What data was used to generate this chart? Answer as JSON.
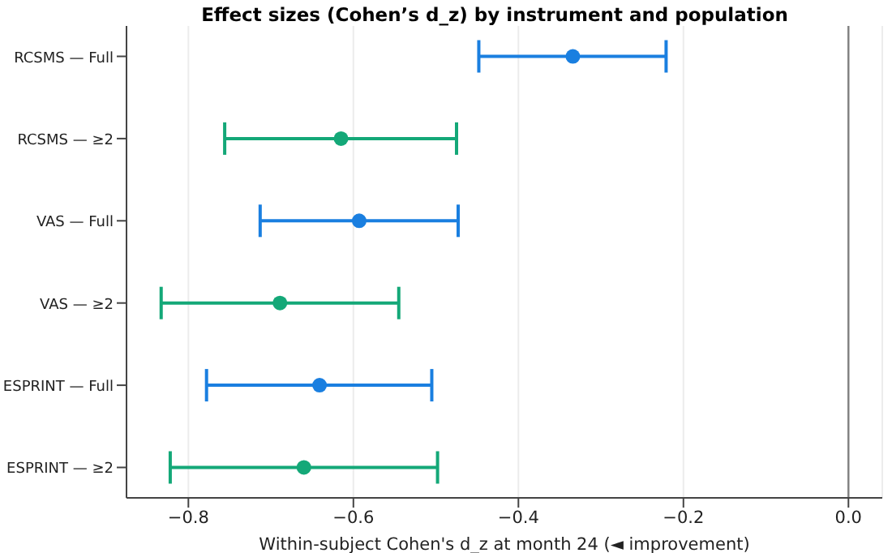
{
  "chart_data": {
    "type": "scatter",
    "title": "Effect sizes (Cohen’s d_z) by instrument and population",
    "xlabel": "Within-subject Cohen's d_z at month 24 (◄ improvement)",
    "categories": [
      "RCSMS — Full",
      "RCSMS — ≥2",
      "VAS — Full",
      "VAS — ≥2",
      "ESPRINT — Full",
      "ESPRINT — ≥2"
    ],
    "orientation": "horizontal",
    "values": [
      -0.334,
      -0.615,
      -0.593,
      -0.689,
      -0.641,
      -0.66
    ],
    "errors": [
      [
        -0.448,
        -0.221
      ],
      [
        -0.756,
        -0.475
      ],
      [
        -0.713,
        -0.473
      ],
      [
        -0.833,
        -0.545
      ],
      [
        -0.778,
        -0.505
      ],
      [
        -0.822,
        -0.498
      ]
    ],
    "colors": [
      "#1a7fe0",
      "#14a878",
      "#1a7fe0",
      "#14a878",
      "#1a7fe0",
      "#14a878"
    ],
    "xlim": [
      -0.875,
      0.041
    ],
    "xticks": [
      {
        "value": -0.8,
        "label": "−0.8"
      },
      {
        "value": -0.6,
        "label": "−0.6"
      },
      {
        "value": -0.4,
        "label": "−0.4"
      },
      {
        "value": -0.2,
        "label": "−0.2"
      },
      {
        "value": 0,
        "label": "0.0"
      }
    ],
    "grid": "x",
    "marker": "circle",
    "ref_lines": [
      {
        "axis": "x",
        "value": 0,
        "color": "#808080"
      }
    ]
  }
}
